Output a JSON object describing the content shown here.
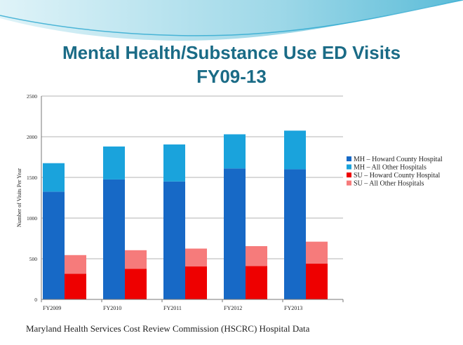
{
  "slide": {
    "title_line1": "Mental Health/Substance Use ED Visits",
    "title_line2": "FY09-13",
    "source": "Maryland Health Services Cost Review Commission (HSCRC) Hospital Data"
  },
  "chart_data": {
    "type": "bar",
    "stacked": true,
    "title": "Mental Health/Substance Use ED Visits FY09-13",
    "xlabel": "",
    "ylabel": "Number of Visits Per Year",
    "ylim": [
      0,
      2500
    ],
    "yticks": [
      0,
      500,
      1000,
      1500,
      2000,
      2500
    ],
    "ytick_labels": [
      "0",
      "500",
      "1000",
      "1500",
      "2000",
      "2500"
    ],
    "categories": [
      "FY2009",
      "FY2010",
      "FY2011",
      "FY2012",
      "FY2013"
    ],
    "stacks": [
      {
        "name": "MH",
        "series": [
          {
            "name": "MH – Howard County Hospital",
            "color": "#1769c6",
            "values": [
              1325,
              1475,
              1450,
              1610,
              1600
            ]
          },
          {
            "name": "MH – All Other Hospitals",
            "color": "#1aa3dc",
            "values": [
              350,
              405,
              455,
              420,
              475
            ]
          }
        ]
      },
      {
        "name": "SU",
        "series": [
          {
            "name": "SU – Howard County Hospital",
            "color": "#ee0000",
            "values": [
              315,
              375,
              405,
              410,
              440
            ]
          },
          {
            "name": "SU – All Other Hospitals",
            "color": "#f67b7b",
            "values": [
              230,
              230,
              220,
              245,
              270
            ]
          }
        ]
      }
    ],
    "legend": [
      "MH – Howard County Hospital",
      "MH – All Other Hospitals",
      "SU – Howard County Hospital",
      "SU – All Other Hospitals"
    ],
    "legend_position": "right",
    "grid": true
  }
}
